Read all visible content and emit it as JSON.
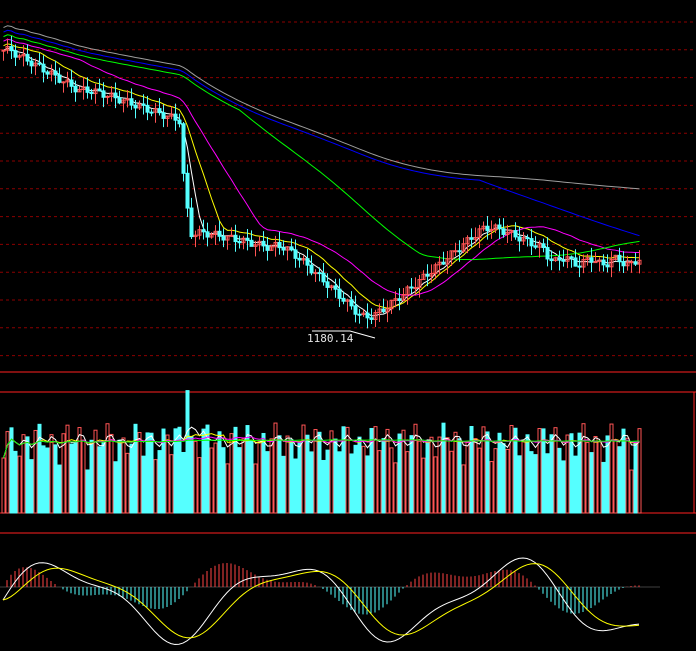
{
  "chart_data": {
    "type": "candlestick",
    "annotations": {
      "low_label": "1180.14"
    },
    "price_panel": {
      "ylim": [
        1150,
        1600
      ],
      "candles_ohlc": [],
      "ma_series": [
        {
          "color": "#ffffff",
          "period_hint": "short"
        },
        {
          "color": "#ffff00",
          "period_hint": "short"
        },
        {
          "color": "#ff00ff",
          "period_hint": "medium"
        },
        {
          "color": "#00ff00",
          "period_hint": "long"
        },
        {
          "color": "#0000ff",
          "period_hint": "longer"
        },
        {
          "color": "#9e9e9e",
          "period_hint": "longest"
        }
      ]
    },
    "volume_panel": {
      "bar_up_color": "#ff5555",
      "bar_down_color": "#55ffff",
      "ma_colors": [
        "#ffffff",
        "#ffff00",
        "#ff00ff",
        "#00ff00"
      ]
    },
    "macd_panel": {
      "hist_up_color": "#ff4444",
      "hist_down_color": "#55ffff",
      "line_colors": [
        "#ffffff",
        "#ffff00"
      ]
    },
    "colors": {
      "background": "#000000",
      "grid": "#8b0000",
      "separator": "#ff2020"
    }
  }
}
